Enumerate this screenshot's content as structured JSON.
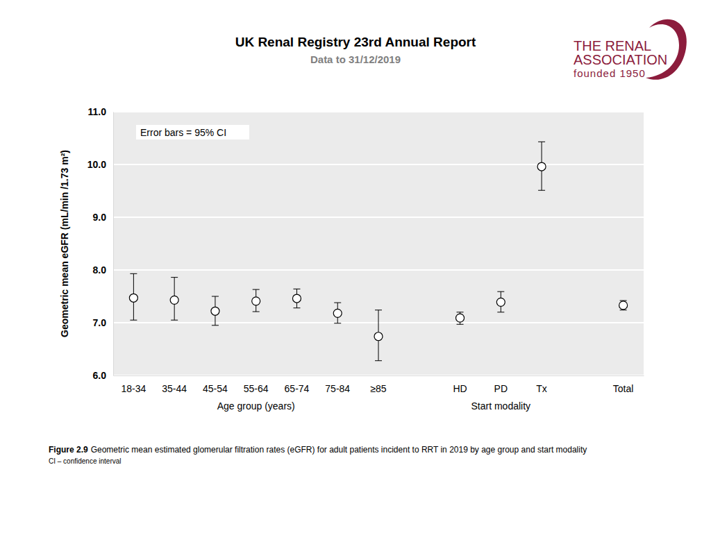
{
  "chart_data": {
    "type": "errorbar",
    "title": "UK Renal Registry 23rd Annual Report",
    "subtitle": "Data to 31/12/2019",
    "ylabel": "Geometric mean eGFR (mL/min /1.73 m²)",
    "annotation": "Error bars = 95% CI",
    "categories": [
      "18-34",
      "35-44",
      "45-54",
      "55-64",
      "65-74",
      "75-84",
      "≥85",
      null,
      "HD",
      "PD",
      "Tx",
      null,
      "Total"
    ],
    "values": [
      7.47,
      7.43,
      7.22,
      7.41,
      7.46,
      7.18,
      6.74,
      null,
      7.09,
      7.39,
      9.96,
      null,
      7.33
    ],
    "ci_lower": [
      7.05,
      7.05,
      6.95,
      7.21,
      7.28,
      6.99,
      6.28,
      null,
      6.97,
      7.2,
      9.51,
      null,
      7.24
    ],
    "ci_upper": [
      7.93,
      7.86,
      7.5,
      7.63,
      7.64,
      7.38,
      7.24,
      null,
      7.2,
      7.59,
      10.43,
      null,
      7.42
    ],
    "x_groups": [
      {
        "label": "Age group (years)",
        "categories": [
          "18-34",
          "35-44",
          "45-54",
          "55-64",
          "65-74",
          "75-84",
          "≥85"
        ]
      },
      {
        "label": "Start modality",
        "categories": [
          "HD",
          "PD",
          "Tx"
        ]
      }
    ],
    "ylim": [
      6,
      11
    ],
    "yticks": [
      {
        "value": 6,
        "label": "6.0"
      },
      {
        "value": 7,
        "label": "7.0"
      },
      {
        "value": 8,
        "label": "8.0"
      },
      {
        "value": 9,
        "label": "9.0"
      },
      {
        "value": 10,
        "label": "10.0"
      },
      {
        "value": 11,
        "label": "11.0"
      }
    ],
    "grid": true,
    "marker": "circle"
  },
  "page": {
    "logo": [
      "THE RENAL",
      "ASSOCIATION",
      "founded 1950"
    ],
    "caption_label": "Figure 2.9",
    "caption": "Geometric mean estimated glomerular filtration rates (eGFR) for adult patients incident to RRT in 2019 by age group and start modality",
    "note": "CI – confidence interval"
  }
}
